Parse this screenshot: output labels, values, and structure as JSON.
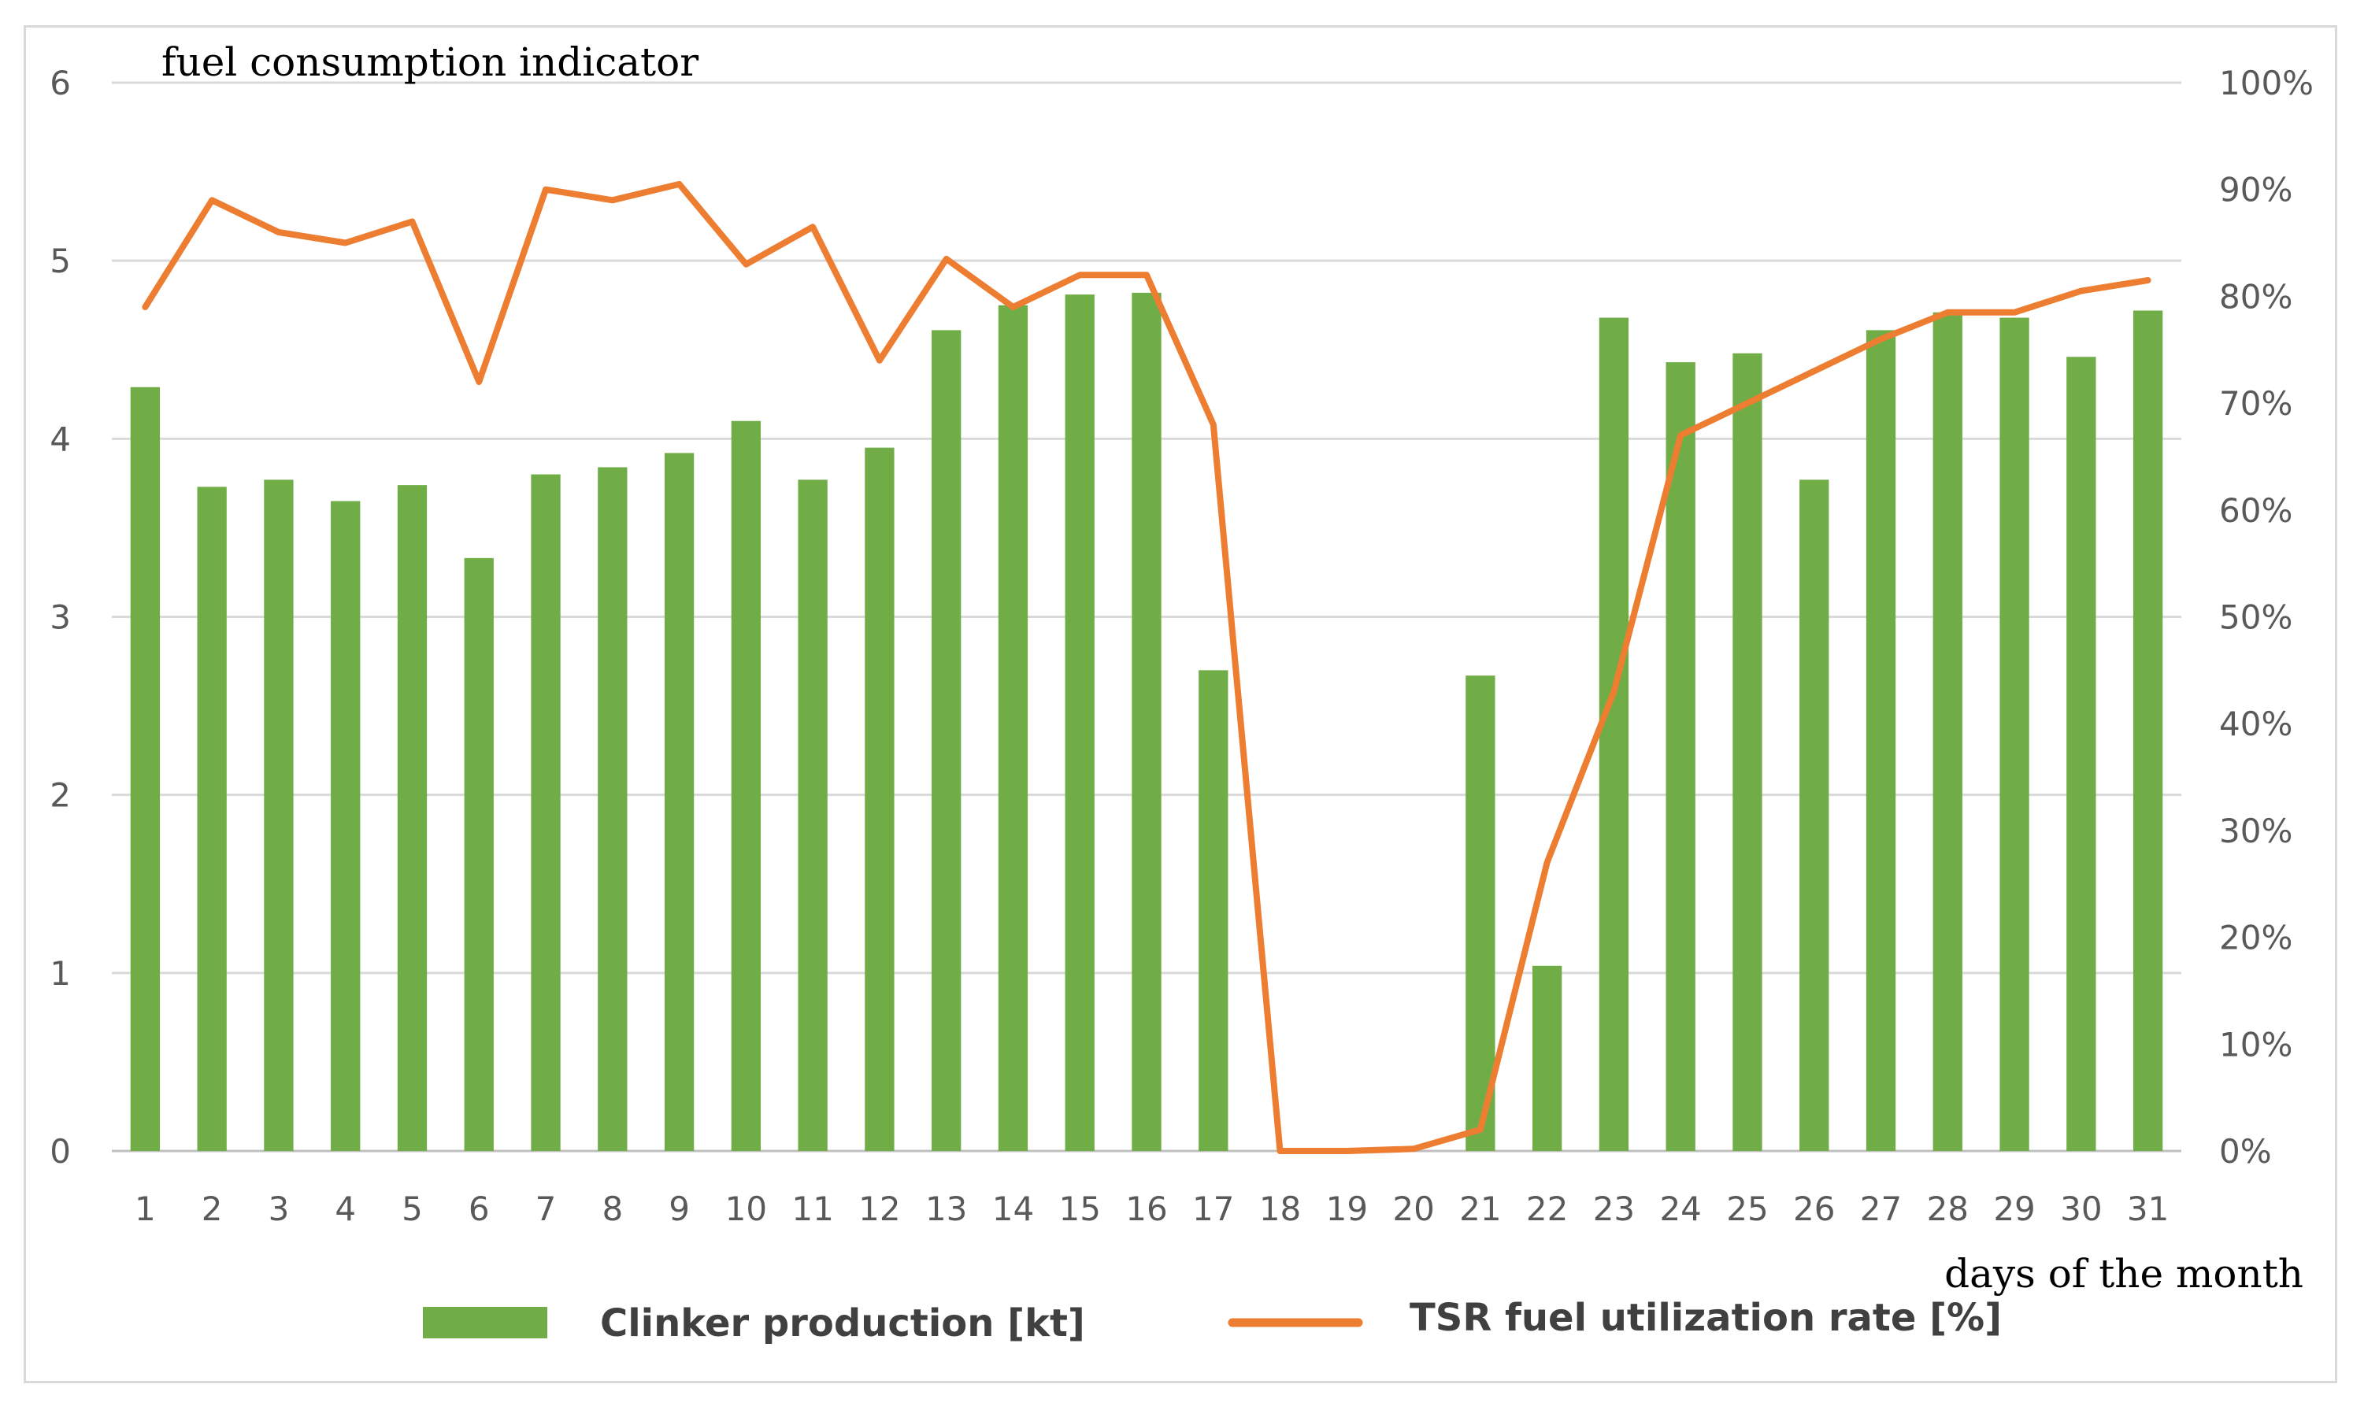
{
  "chart_data": {
    "type": "bar+line",
    "title": "fuel consumption indicator",
    "xlabel": "days of the month",
    "categories": [
      "1",
      "2",
      "3",
      "4",
      "5",
      "6",
      "7",
      "8",
      "9",
      "10",
      "11",
      "12",
      "13",
      "14",
      "15",
      "16",
      "17",
      "18",
      "19",
      "20",
      "21",
      "22",
      "23",
      "24",
      "25",
      "26",
      "27",
      "28",
      "29",
      "30",
      "31"
    ],
    "left_axis": {
      "ylim": [
        0,
        6
      ],
      "ticks": [
        "0",
        "1",
        "2",
        "3",
        "4",
        "5",
        "6"
      ]
    },
    "right_axis": {
      "ylim": [
        0,
        100
      ],
      "ticks": [
        "0%",
        "10%",
        "20%",
        "30%",
        "40%",
        "50%",
        "60%",
        "70%",
        "80%",
        "90%",
        "100%"
      ]
    },
    "series": [
      {
        "name": "Clinker production [kt]",
        "kind": "bar",
        "axis": "left",
        "color": "#70ad47",
        "values": [
          4.29,
          3.73,
          3.77,
          3.65,
          3.74,
          3.33,
          3.8,
          3.84,
          3.92,
          4.1,
          3.77,
          3.95,
          4.61,
          4.75,
          4.81,
          4.82,
          2.7,
          0,
          0,
          0,
          2.67,
          1.04,
          4.68,
          4.43,
          4.48,
          3.77,
          4.61,
          4.71,
          4.68,
          4.46,
          4.72
        ]
      },
      {
        "name": "TSR fuel utilization rate [%]",
        "kind": "line",
        "axis": "right",
        "color": "#ed7d31",
        "values": [
          79,
          89,
          86,
          85,
          87,
          72,
          90,
          89,
          90.5,
          83,
          86.5,
          74,
          83.5,
          79,
          82,
          82,
          68,
          0,
          0,
          0.2,
          2,
          27,
          43,
          67,
          70,
          73,
          76,
          78.5,
          78.5,
          80.5,
          81.5
        ]
      }
    ],
    "grid": true,
    "legend": "bottom"
  }
}
